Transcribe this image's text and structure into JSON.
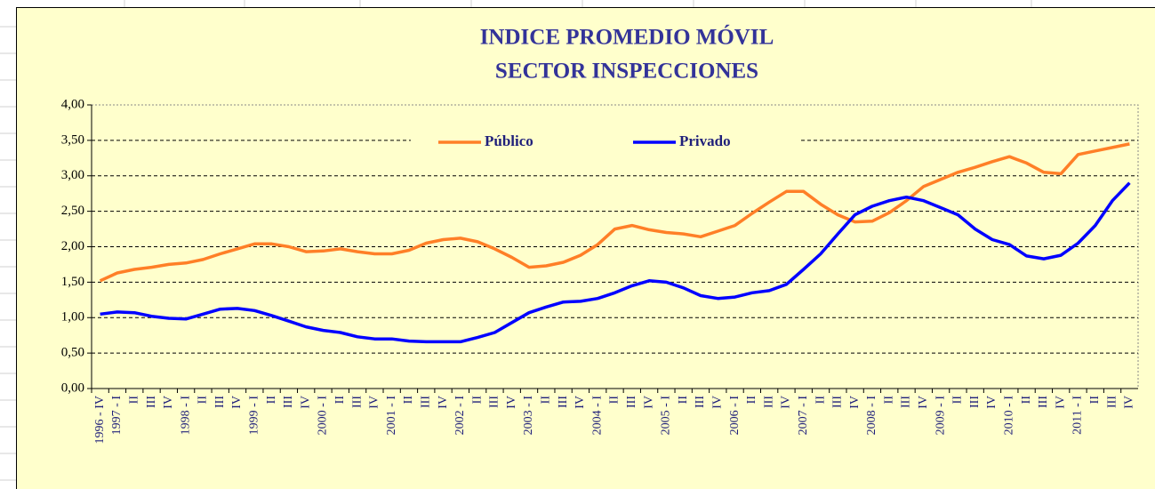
{
  "chart_data": {
    "type": "line",
    "title": [
      "INDICE PROMEDIO MÓVIL",
      "SECTOR INSPECCIONES"
    ],
    "categories": [
      "1996 - IV",
      "1997 - I",
      "II",
      "III",
      "IV",
      "1998 - I",
      "II",
      "III",
      "IV",
      "1999 - I",
      "II",
      "III",
      "IV",
      "2000 - I",
      "II",
      "III",
      "IV",
      "2001 - I",
      "II",
      "III",
      "IV",
      "2002 - I",
      "II",
      "III",
      "IV",
      "2003 - I",
      "II",
      "III",
      "IV",
      "2004 - I",
      "II",
      "III",
      "IV",
      "2005 - I",
      "II",
      "III",
      "IV",
      "2006 - I",
      "II",
      "III",
      "IV",
      "2007 - I",
      "II",
      "III",
      "IV",
      "2008 - I",
      "II",
      "III",
      "IV",
      "2009 - I",
      "II",
      "III",
      "IV",
      "2010 - I",
      "II",
      "III",
      "IV",
      "2011 - I",
      "II",
      "III",
      "IV"
    ],
    "series": [
      {
        "name": "Público",
        "color": "#ff7f27",
        "values": [
          1.52,
          1.63,
          1.68,
          1.71,
          1.75,
          1.77,
          1.82,
          1.9,
          1.97,
          2.04,
          2.04,
          2.0,
          1.93,
          1.94,
          1.97,
          1.93,
          1.9,
          1.9,
          1.95,
          2.05,
          2.1,
          2.12,
          2.07,
          1.97,
          1.85,
          1.71,
          1.73,
          1.78,
          1.88,
          2.03,
          2.25,
          2.3,
          2.24,
          2.2,
          2.18,
          2.14,
          2.22,
          2.3,
          2.47,
          2.63,
          2.78,
          2.78,
          2.6,
          2.45,
          2.35,
          2.36,
          2.48,
          2.65,
          2.85,
          2.95,
          3.05,
          3.12,
          3.2,
          3.27,
          3.18,
          3.05,
          3.03,
          3.3,
          3.35,
          3.4,
          3.45
        ]
      },
      {
        "name": "Privado",
        "color": "#0000ff",
        "values": [
          1.05,
          1.08,
          1.07,
          1.02,
          0.99,
          0.98,
          1.05,
          1.12,
          1.13,
          1.1,
          1.03,
          0.95,
          0.87,
          0.82,
          0.79,
          0.73,
          0.7,
          0.7,
          0.67,
          0.66,
          0.66,
          0.66,
          0.72,
          0.79,
          0.93,
          1.07,
          1.15,
          1.22,
          1.23,
          1.27,
          1.35,
          1.45,
          1.52,
          1.5,
          1.42,
          1.31,
          1.27,
          1.29,
          1.35,
          1.38,
          1.47,
          1.68,
          1.9,
          2.18,
          2.45,
          2.57,
          2.65,
          2.7,
          2.65,
          2.55,
          2.45,
          2.25,
          2.1,
          2.03,
          1.87,
          1.83,
          1.88,
          2.05,
          2.3,
          2.65,
          2.9
        ]
      }
    ],
    "ylim": [
      0,
      4
    ],
    "yticks": [
      {
        "value": 0,
        "label": "0,00"
      },
      {
        "value": 0.5,
        "label": "0,50"
      },
      {
        "value": 1,
        "label": "1,00"
      },
      {
        "value": 1.5,
        "label": "1,50"
      },
      {
        "value": 2,
        "label": "2,00"
      },
      {
        "value": 2.5,
        "label": "2,50"
      },
      {
        "value": 3,
        "label": "3,00"
      },
      {
        "value": 3.5,
        "label": "3,50"
      },
      {
        "value": 4,
        "label": "4,00"
      }
    ],
    "grid": true,
    "legend": "top"
  }
}
